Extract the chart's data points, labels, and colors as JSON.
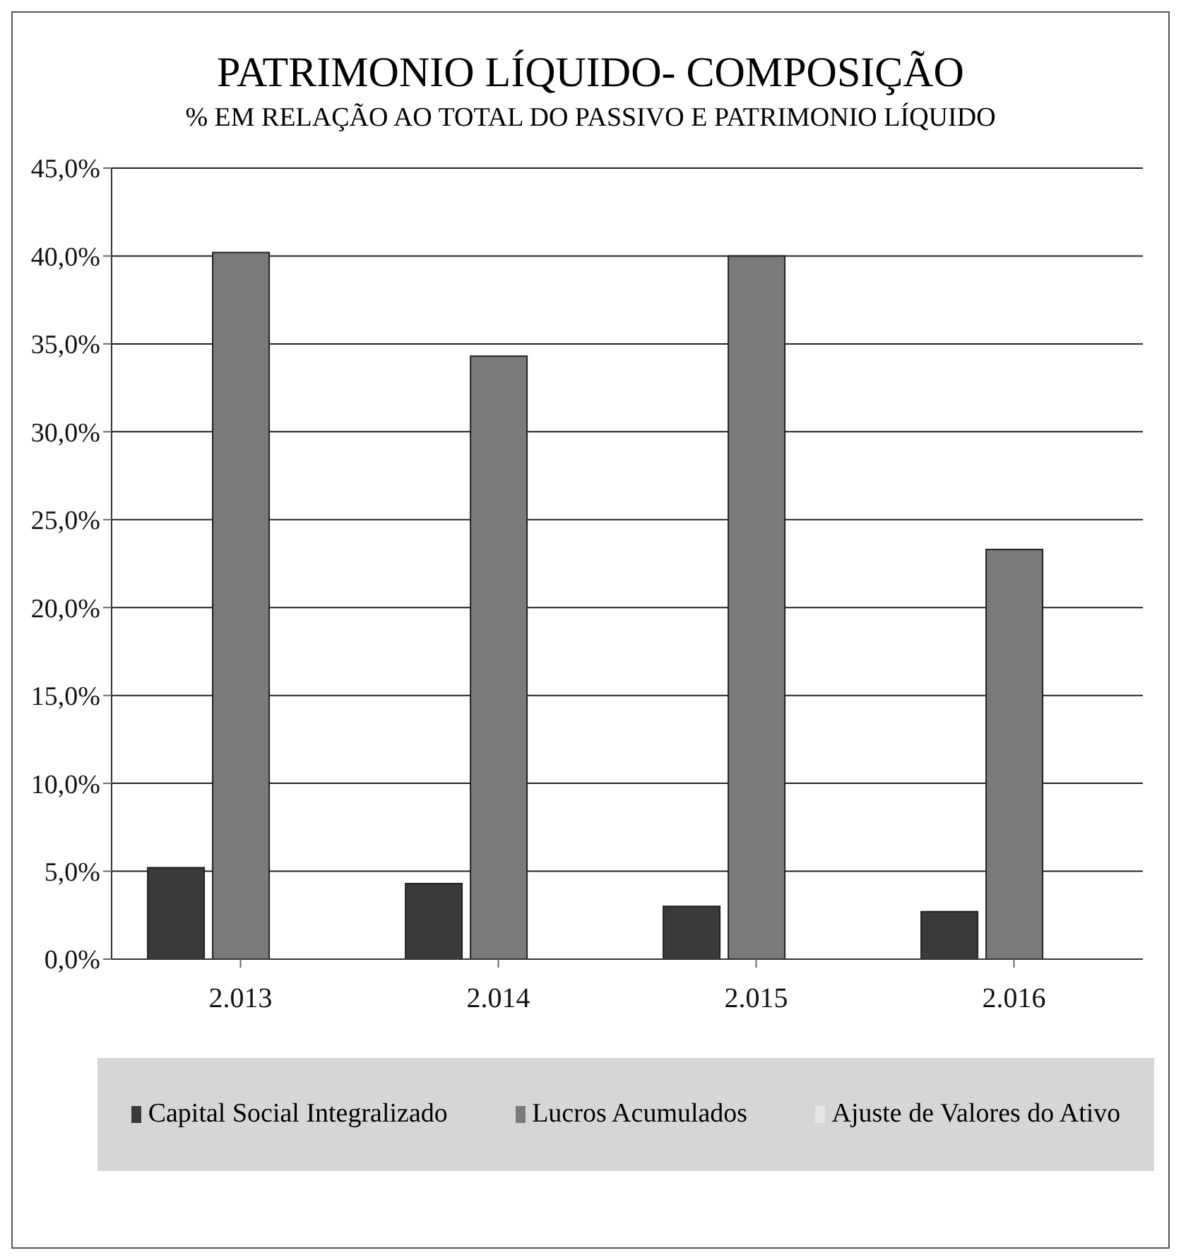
{
  "chart_data": {
    "type": "bar",
    "title": "PATRIMONIO LÍQUIDO- COMPOSIÇÃO",
    "subtitle": "% EM RELAÇÃO AO TOTAL DO PASSIVO E PATRIMONIO LÍQUIDO",
    "categories": [
      "2.013",
      "2.014",
      "2.015",
      "2.016"
    ],
    "series": [
      {
        "name": "Capital Social Integralizado",
        "color": "#3a3a3a",
        "values": [
          5.2,
          4.3,
          3.0,
          2.7
        ]
      },
      {
        "name": "Lucros Acumulados",
        "color": "#7a7a7a",
        "values": [
          40.2,
          34.3,
          40.0,
          23.3
        ]
      },
      {
        "name": "Ajuste de Valores do Ativo",
        "color": "#e6e6e6",
        "values": [
          0,
          0,
          0,
          0
        ]
      }
    ],
    "ylim": [
      0,
      45
    ],
    "yticks": [
      {
        "value": 0,
        "label": "0,0%"
      },
      {
        "value": 5,
        "label": "5,0%"
      },
      {
        "value": 10,
        "label": "10,0%"
      },
      {
        "value": 15,
        "label": "15,0%"
      },
      {
        "value": 20,
        "label": "20,0%"
      },
      {
        "value": 25,
        "label": "25,0%"
      },
      {
        "value": 30,
        "label": "30,0%"
      },
      {
        "value": 35,
        "label": "35,0%"
      },
      {
        "value": 40,
        "label": "40,0%"
      },
      {
        "value": 45,
        "label": "45,0%"
      }
    ],
    "grid": "y",
    "legend": "bottom"
  }
}
